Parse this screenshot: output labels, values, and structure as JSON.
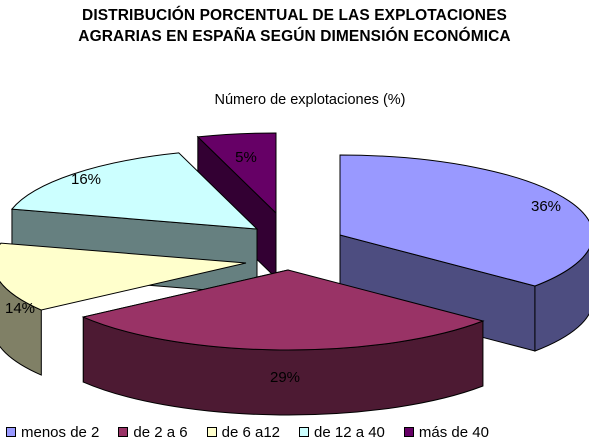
{
  "chart_data": {
    "type": "pie",
    "title_lines": [
      "DISTRIBUCIÓN PORCENTUAL DE LAS EXPLOTACIONES",
      "AGRARIAS EN ESPAÑA SEGÚN DIMENSIÓN ECONÓMICA"
    ],
    "subtitle": "Número de explotaciones (%)",
    "three_d": true,
    "exploded": true,
    "legend_position": "bottom",
    "slices": [
      {
        "label": "menos de 2",
        "value": 36,
        "data_label": "36%",
        "color": "#9999ff",
        "side_color": "#4d4d80"
      },
      {
        "label": "de 2 a 6",
        "value": 29,
        "data_label": "29%",
        "color": "#993366",
        "side_color": "#4d1a33"
      },
      {
        "label": "de 6 a12",
        "value": 14,
        "data_label": "14%",
        "color": "#ffffcc",
        "side_color": "#808066"
      },
      {
        "label": "de 12 a 40",
        "value": 16,
        "data_label": "16%",
        "color": "#ccffff",
        "side_color": "#668080"
      },
      {
        "label": "más de 40",
        "value": 5,
        "data_label": "5%",
        "color": "#660066",
        "side_color": "#330033"
      }
    ]
  }
}
